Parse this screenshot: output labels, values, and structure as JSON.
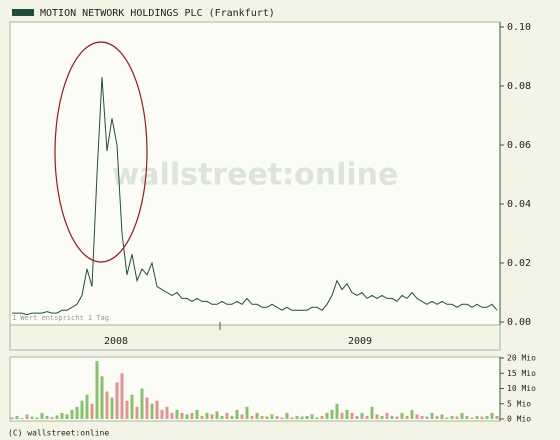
{
  "legend": "MOTION NETWORK HOLDINGS PLC (Frankfurt)",
  "watermark": "wallstreet:online",
  "note": "1 Wert entspricht 1 Tag",
  "footer": "(C) wallstreet:online",
  "chart_data": [
    {
      "type": "line",
      "color": "#1f4f3a",
      "xlim": [
        0,
        97
      ],
      "x_labels": [
        {
          "value": 20.8,
          "label": "2008"
        },
        {
          "value": 69.6,
          "label": "2009"
        }
      ],
      "x_boundaries": [
        41.6
      ],
      "ylim": [
        0,
        0.1
      ],
      "yticks": [
        {
          "value": 0,
          "label": "0.00"
        },
        0.02,
        0.04,
        0.06,
        0.08,
        {
          "value": 0.1,
          "label": "0.10"
        }
      ],
      "values": [
        0.003,
        0.003,
        0.003,
        0.0025,
        0.003,
        0.003,
        0.003,
        0.0035,
        0.003,
        0.003,
        0.004,
        0.004,
        0.005,
        0.006,
        0.009,
        0.018,
        0.012,
        0.05,
        0.083,
        0.058,
        0.069,
        0.06,
        0.03,
        0.016,
        0.023,
        0.014,
        0.018,
        0.016,
        0.02,
        0.012,
        0.011,
        0.01,
        0.009,
        0.01,
        0.008,
        0.008,
        0.007,
        0.008,
        0.007,
        0.007,
        0.006,
        0.006,
        0.007,
        0.006,
        0.006,
        0.007,
        0.006,
        0.008,
        0.006,
        0.006,
        0.005,
        0.005,
        0.006,
        0.005,
        0.004,
        0.005,
        0.004,
        0.004,
        0.004,
        0.004,
        0.005,
        0.005,
        0.004,
        0.006,
        0.009,
        0.014,
        0.011,
        0.013,
        0.01,
        0.009,
        0.01,
        0.008,
        0.009,
        0.008,
        0.009,
        0.008,
        0.008,
        0.007,
        0.009,
        0.008,
        0.01,
        0.008,
        0.007,
        0.006,
        0.007,
        0.006,
        0.007,
        0.006,
        0.006,
        0.005,
        0.006,
        0.006,
        0.005,
        0.006,
        0.005,
        0.005,
        0.006,
        0.004
      ]
    },
    {
      "type": "bar",
      "up_color": "#86c46a",
      "down_color": "#e39292",
      "xlim": [
        0,
        97
      ],
      "ylim": [
        0,
        20
      ],
      "yticks": [
        {
          "value": 0,
          "label": "0 Mio"
        },
        {
          "value": 5,
          "label": "5 Mio"
        },
        {
          "value": 10,
          "label": "10 Mio"
        },
        {
          "value": 15,
          "label": "15 Mio"
        },
        {
          "value": 20,
          "label": "20 Mio"
        }
      ],
      "values": [
        0.5,
        1,
        0.3,
        1.5,
        0.8,
        0.5,
        2,
        1,
        0.6,
        1.2,
        2,
        1.5,
        3,
        4,
        6,
        8,
        5,
        19,
        14,
        9,
        7,
        12,
        15,
        6,
        8,
        4,
        10,
        7,
        5,
        6,
        3,
        4,
        2,
        3,
        2,
        1.5,
        2,
        3,
        1,
        2,
        1.5,
        2.5,
        1,
        2,
        1,
        3,
        1.5,
        4,
        1,
        2,
        1,
        0.8,
        1.5,
        1,
        0.5,
        2,
        0.5,
        1,
        0.8,
        1,
        1.5,
        0.5,
        1,
        2,
        3,
        5,
        2,
        3,
        2,
        1,
        2,
        1,
        4,
        1.5,
        1,
        2,
        1,
        0.8,
        2,
        1,
        3,
        1.5,
        1,
        0.8,
        2,
        1,
        1.5,
        0.5,
        1,
        0.8,
        2,
        1,
        0.5,
        1,
        0.8,
        1,
        2,
        1
      ]
    }
  ]
}
